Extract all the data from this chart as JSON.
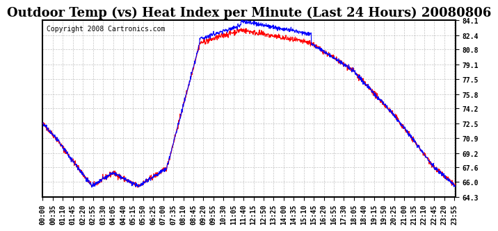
{
  "title": "Outdoor Temp (vs) Heat Index per Minute (Last 24 Hours) 20080806",
  "copyright_text": "Copyright 2008 Cartronics.com",
  "yticks": [
    64.3,
    66.0,
    67.6,
    69.2,
    70.9,
    72.5,
    74.2,
    75.8,
    77.5,
    79.1,
    80.8,
    82.4,
    84.1
  ],
  "ymin": 64.3,
  "ymax": 84.1,
  "line_color_red": "#ff0000",
  "line_color_blue": "#0000ff",
  "bg_color": "#ffffff",
  "grid_color": "#aaaaaa",
  "title_fontsize": 13,
  "copyright_fontsize": 7,
  "tick_fontsize": 7
}
